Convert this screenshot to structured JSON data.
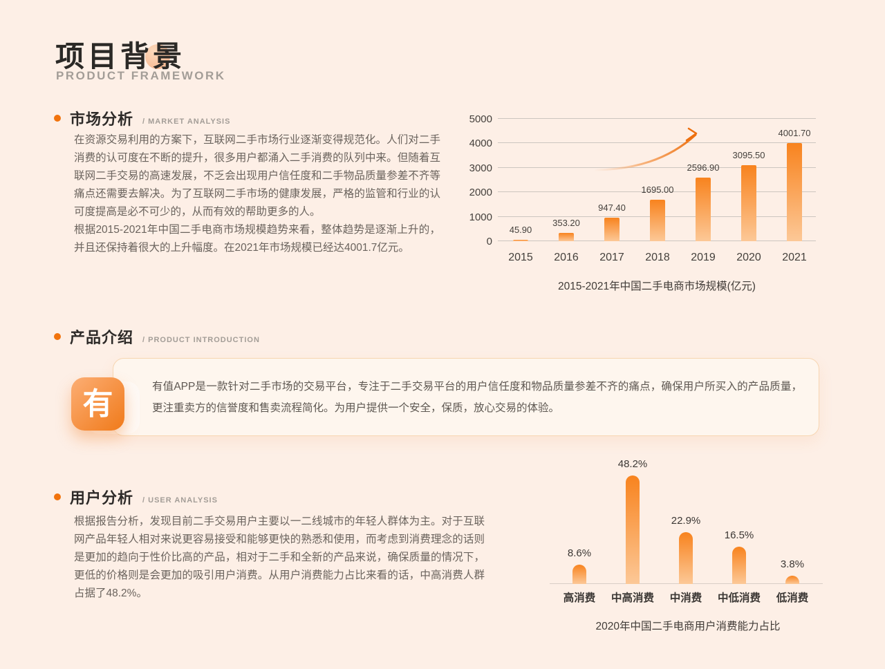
{
  "header": {
    "title": "项目背景",
    "subtitle": "PRODUCT FRAMEWORK"
  },
  "colors": {
    "accent": "#f1730d",
    "bar_top": "#f8831e",
    "bar_bottom": "#fcc897",
    "background": "#fdefe6"
  },
  "sections": {
    "market": {
      "heading": "市场分析",
      "tag": "/ MARKET ANALYSIS",
      "paragraph1": "在资源交易利用的方案下，互联网二手市场行业逐渐变得规范化。人们对二手消费的认可度在不断的提升，很多用户都涌入二手消费的队列中来。但随着互联网二手交易的高速发展，不乏会出现用户信任度和二手物品质量参差不齐等痛点还需要去解决。为了互联网二手市场的健康发展，严格的监管和行业的认可度提高是必不可少的，从而有效的帮助更多的人。",
      "paragraph2": "根据2015-2021年中国二手电商市场规模趋势来看，整体趋势是逐渐上升的，并且还保持着很大的上升幅度。在2021年市场规模已经达4001.7亿元。"
    },
    "product": {
      "heading": "产品介绍",
      "tag": "/ PRODUCT INTRODUCTION",
      "logo_glyph": "有",
      "card_text": "有值APP是一款针对二手市场的交易平台，专注于二手交易平台的用户信任度和物品质量参差不齐的痛点，确保用户所买入的产品质量，更注重卖方的信誉度和售卖流程简化。为用户提供一个安全，保质，放心交易的体验。"
    },
    "user": {
      "heading": "用户分析",
      "tag": "/ USER ANALYSIS",
      "paragraph": "根据报告分析，发现目前二手交易用户主要以一二线城市的年轻人群体为主。对于互联网产品年轻人相对来说更容易接受和能够更快的熟悉和使用，而考虑到消费理念的话则是更加的趋向于性价比高的产品，相对于二手和全新的产品来说，确保质量的情况下，更低的价格则是会更加的吸引用户消费。从用户消费能力占比来看的话，中高消费人群占据了48.2%。"
    }
  },
  "chart_data": [
    {
      "type": "bar",
      "title": "2015-2021年中国二手电商市场规模(亿元)",
      "categories": [
        "2015",
        "2016",
        "2017",
        "2018",
        "2019",
        "2020",
        "2021"
      ],
      "values": [
        45.9,
        353.2,
        947.4,
        1695.0,
        2596.9,
        3095.5,
        4001.7
      ],
      "value_labels": [
        "45.90",
        "353.20",
        "947.40",
        "1695.00",
        "2596.90",
        "3095.50",
        "4001.70"
      ],
      "ylabel": "",
      "xlabel": "",
      "ylim": [
        0,
        5000
      ],
      "yticks": [
        0,
        1000,
        2000,
        3000,
        4000,
        5000
      ],
      "grid": true,
      "legend": "none",
      "annotations": [
        "growth-arrow"
      ]
    },
    {
      "type": "bar",
      "title": "2020年中国二手电商用户消费能力占比",
      "categories": [
        "高消费",
        "中高消费",
        "中消费",
        "中低消费",
        "低消费"
      ],
      "values": [
        8.6,
        48.2,
        22.9,
        16.5,
        3.8
      ],
      "value_labels": [
        "8.6%",
        "48.2%",
        "22.9%",
        "16.5%",
        "3.8%"
      ],
      "ylabel": "",
      "xlabel": "",
      "ylim": [
        0,
        50
      ],
      "grid": false,
      "legend": "none"
    }
  ]
}
